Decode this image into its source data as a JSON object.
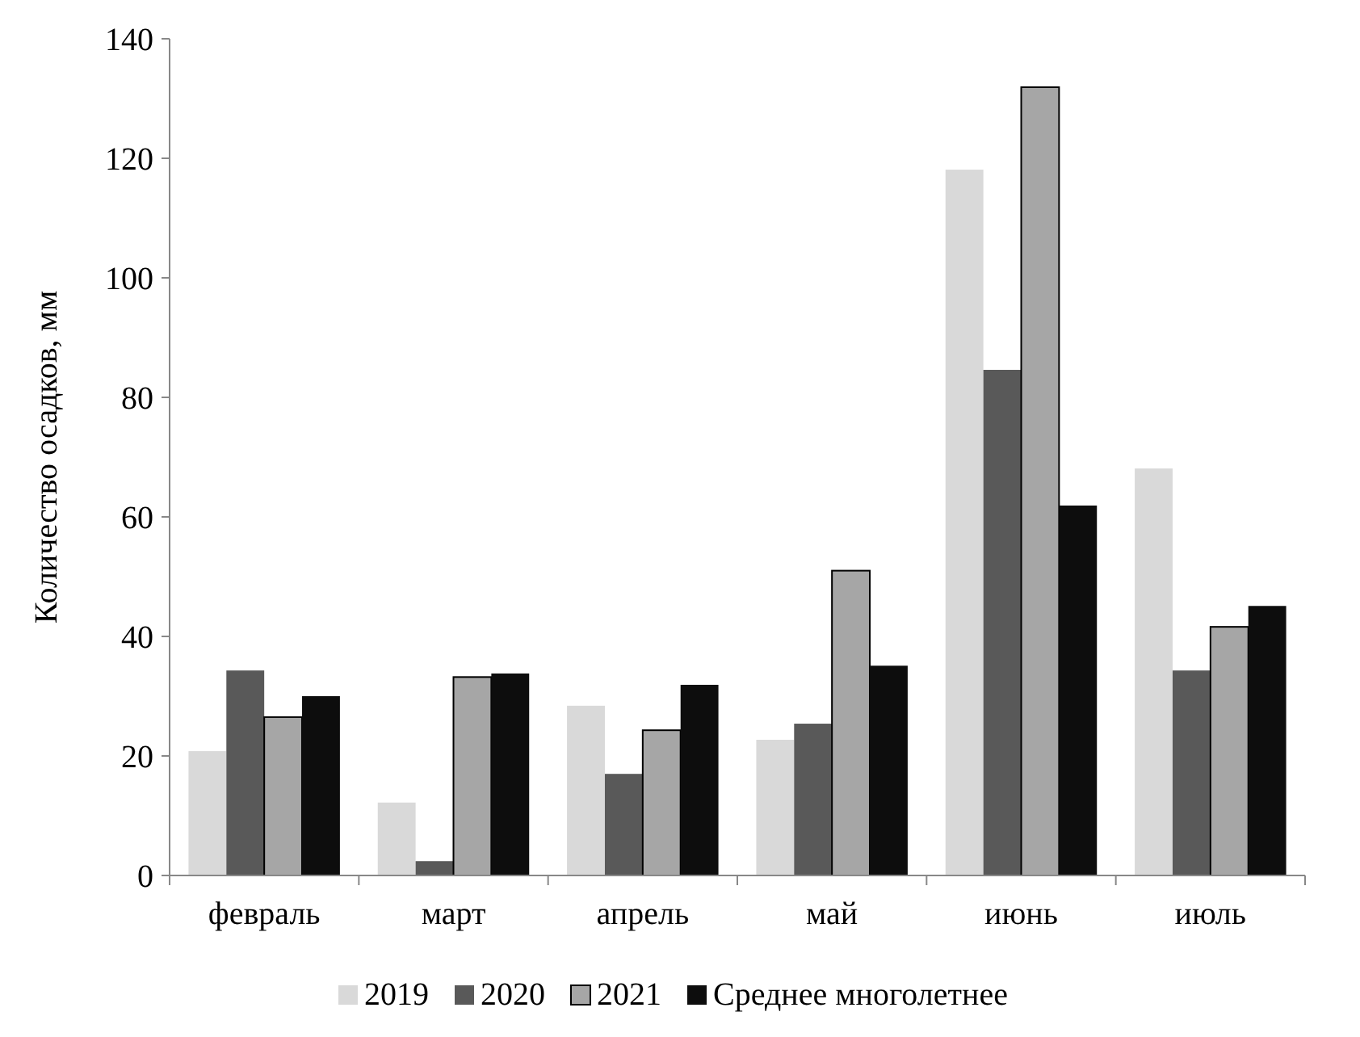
{
  "chart_data": {
    "type": "bar",
    "ylabel": "Количество осадков, мм",
    "categories": [
      "февраль",
      "март",
      "апрель",
      "май",
      "июнь",
      "июль"
    ],
    "series": [
      {
        "name": "2019",
        "color": "#d9d9d9",
        "values": [
          20.8,
          12.2,
          28.4,
          22.7,
          118.1,
          68.1
        ]
      },
      {
        "name": "2020",
        "color": "#595959",
        "values": [
          34.3,
          2.4,
          17,
          25.4,
          84.6,
          34.3
        ]
      },
      {
        "name": "2021",
        "color": "#a6a6a6",
        "values": [
          26.5,
          33.2,
          24.3,
          51,
          131.9,
          41.6
        ]
      },
      {
        "name": "Среднее многолетнее",
        "color": "#0d0d0d",
        "values": [
          30,
          33.8,
          31.9,
          35.1,
          61.9,
          45.1
        ]
      }
    ],
    "ylim": [
      0,
      140
    ],
    "yticks": [
      0,
      20,
      40,
      60,
      80,
      100,
      120,
      140
    ],
    "grid": false,
    "legend": "bottom"
  }
}
